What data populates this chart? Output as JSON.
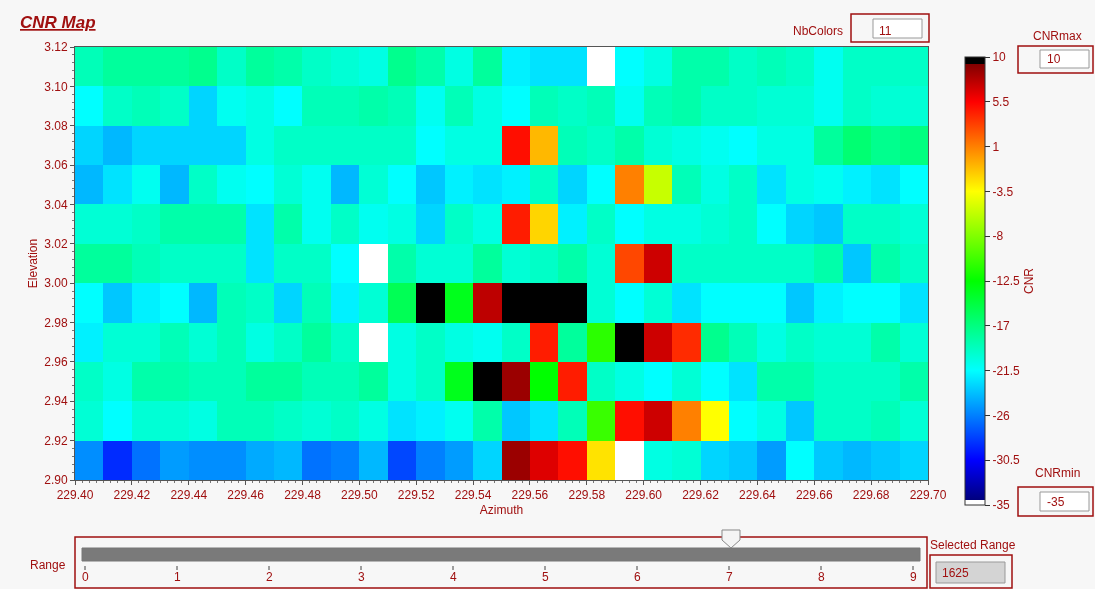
{
  "chart_data": {
    "type": "heatmap",
    "title": "CNR Map",
    "xlabel": "Azimuth",
    "ylabel": "Elevation",
    "clabel": "CNR",
    "x": [
      229.405,
      229.415,
      229.425,
      229.435,
      229.445,
      229.455,
      229.465,
      229.475,
      229.485,
      229.495,
      229.505,
      229.515,
      229.525,
      229.535,
      229.545,
      229.555,
      229.565,
      229.575,
      229.585,
      229.595,
      229.605,
      229.615,
      229.625,
      229.635,
      229.645,
      229.655,
      229.665,
      229.675,
      229.685,
      229.695
    ],
    "y": [
      3.11,
      3.09,
      3.07,
      3.05,
      3.03,
      3.01,
      2.99,
      2.97,
      2.95,
      2.93,
      2.91
    ],
    "cells": [
      [
        -19,
        -18,
        -18,
        -18,
        -17.5,
        -19.5,
        -18,
        -18.5,
        -19.5,
        -20,
        -20.5,
        -17.5,
        -18.5,
        -20.5,
        -18,
        -22,
        -22.5,
        -22.5,
        -35,
        -21.5,
        -20.5,
        -18.5,
        -18.5,
        -19.5,
        -19,
        -19.5,
        -21,
        -19.5,
        -19.5,
        -19.5
      ],
      [
        -21.5,
        -19.5,
        -19,
        -19.5,
        -23,
        -21,
        -20.5,
        -21.5,
        -19,
        -19,
        -18.5,
        -19,
        -21,
        -19,
        -20.5,
        -21.5,
        -19,
        -19.5,
        -19,
        -21,
        -19,
        -18.5,
        -19.5,
        -19.5,
        -20,
        -20,
        -21,
        -19.5,
        -20,
        -20
      ],
      [
        -23,
        -24,
        -23,
        -23,
        -23,
        -23,
        -20.5,
        -19.5,
        -19.5,
        -19.5,
        -19.5,
        -19.5,
        -21.5,
        -20.5,
        -20.5,
        5,
        -1,
        -19,
        -19.5,
        -18.5,
        -20,
        -20.5,
        -21,
        -21.5,
        -20.5,
        -20.5,
        -18,
        -16.5,
        -17.5,
        -17
      ],
      [
        -24,
        -22.5,
        -21,
        -24,
        -19.5,
        -21,
        -21.5,
        -20,
        -21,
        -24,
        -20,
        -21.5,
        -23.5,
        -22,
        -22.5,
        -22,
        -19.5,
        -23,
        -21.5,
        1,
        -5.5,
        -19,
        -20.5,
        -19.5,
        -22.5,
        -20.5,
        -21,
        -22,
        -22.5,
        -21.5
      ],
      [
        -20,
        -20,
        -19.5,
        -18.5,
        -18.5,
        -18.5,
        -22.5,
        -18.5,
        -21,
        -19.5,
        -21,
        -20.5,
        -23,
        -19.5,
        -20.5,
        4.5,
        -2,
        -22,
        -19.5,
        -21.5,
        -20.5,
        -20.5,
        -20,
        -19.5,
        -21.5,
        -23,
        -23.5,
        -19.5,
        -19.5,
        -20
      ],
      [
        -18,
        -18,
        -19,
        -19.5,
        -19.5,
        -19.5,
        -22.5,
        -19.5,
        -19.5,
        -21.5,
        -35,
        -18.5,
        -20,
        -20,
        -18,
        -20,
        -19.5,
        -18.5,
        -20,
        3,
        7,
        -19.5,
        -19.5,
        -19.5,
        -19.5,
        -19.5,
        -18.5,
        -23.5,
        -18.5,
        -19.5
      ],
      [
        -21.5,
        -23.5,
        -22,
        -21.5,
        -24,
        -19,
        -19.5,
        -23,
        -19,
        -22,
        -20,
        -15.5,
        10,
        -13.5,
        7.5,
        10,
        10,
        9.5,
        -20,
        -21.5,
        -20,
        -22.5,
        -21.5,
        -21.5,
        -21.5,
        -23.5,
        -22,
        -21.5,
        -21.5,
        -22.5
      ],
      [
        -22,
        -20,
        -20,
        -19,
        -20,
        -19,
        -20.5,
        -19.5,
        -18,
        -19.5,
        -35,
        -20.5,
        -19.5,
        -20.5,
        -21,
        -19.5,
        4.5,
        -18,
        -11,
        10,
        7,
        4,
        -17.5,
        -19,
        -20.5,
        -19.5,
        -20,
        -20,
        -18.5,
        -20
      ],
      [
        -19.5,
        -20.5,
        -18.5,
        -18.5,
        -19,
        -19,
        -18,
        -18,
        -19,
        -19,
        -18,
        -20.5,
        -19.5,
        -13.5,
        10,
        8.5,
        -12.5,
        4.5,
        -19.5,
        -20.5,
        -21.5,
        -20,
        -21.5,
        -22.5,
        -18.5,
        -18.5,
        -19.5,
        -19.5,
        -19.5,
        -18.5
      ],
      [
        -20,
        -21.5,
        -20,
        -20,
        -20.5,
        -19,
        -19,
        -19.5,
        -20,
        -19.5,
        -20.5,
        -22.5,
        -22,
        -21,
        -18.5,
        -23.5,
        -22.5,
        -19,
        -10.5,
        5,
        7,
        1,
        -3.5,
        -21.5,
        -20.5,
        -23.5,
        -19.5,
        -19.5,
        -19,
        -20
      ],
      [
        -25.5,
        -29,
        -26.5,
        -25,
        -25.5,
        -25.5,
        -24.5,
        -24,
        -26.5,
        -26,
        -24,
        -28,
        -26,
        -25,
        -23,
        8.5,
        6.5,
        5,
        -2.5,
        -35,
        -20.5,
        -20,
        -23,
        -23.5,
        -25,
        -21.5,
        -23.5,
        -24,
        -23.5,
        -23
      ]
    ],
    "xlim": [
      229.4,
      229.7
    ],
    "xticks": [
      {
        "value": 229.4,
        "label": "229.40"
      },
      229.42,
      229.44,
      229.46,
      229.48,
      {
        "value": 229.5,
        "label": "229.50"
      },
      229.52,
      229.54,
      229.56,
      229.58,
      {
        "value": 229.6,
        "label": "229.60"
      },
      229.62,
      229.64,
      229.66,
      229.68,
      {
        "value": 229.7,
        "label": "229.70"
      }
    ],
    "ylim": [
      2.9,
      3.12
    ],
    "yticks": [
      {
        "value": 2.9,
        "label": "2.90"
      },
      2.92,
      2.94,
      2.96,
      2.98,
      {
        "value": 3.0,
        "label": "3.00"
      },
      3.02,
      3.04,
      3.06,
      3.08,
      {
        "value": 3.1,
        "label": "3.10"
      },
      3.12
    ],
    "clim": [
      -35,
      10
    ],
    "cticks": [
      -35,
      -30.5,
      -26,
      -21.5,
      -17,
      -12.5,
      -8,
      -3.5,
      1,
      5.5,
      10
    ],
    "annotations": [
      "NbColors",
      "11",
      "CNRmax",
      "10",
      "CNRmin",
      "-35",
      "Range",
      "0",
      "1",
      "2",
      "3",
      "4",
      "5",
      "6",
      "7",
      "8",
      "9",
      "Selected Range",
      "1625"
    ]
  }
}
